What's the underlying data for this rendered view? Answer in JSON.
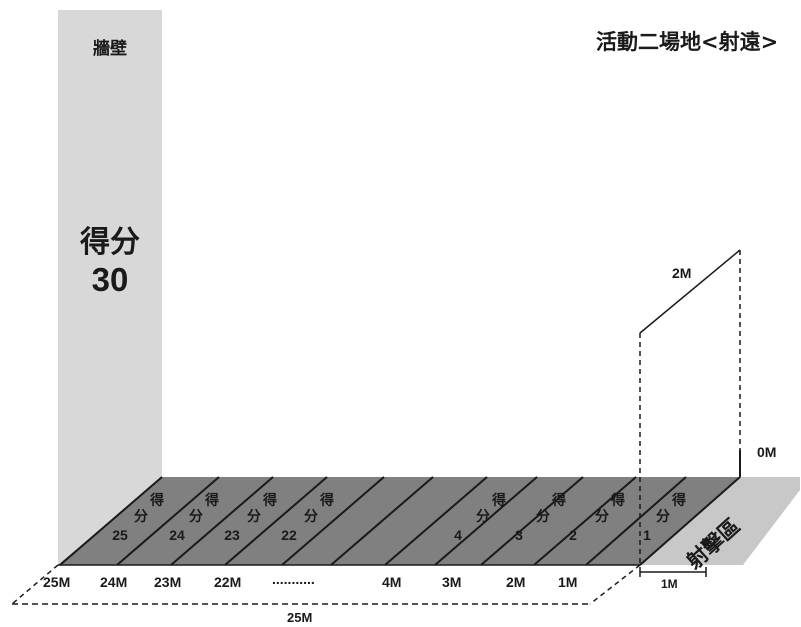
{
  "title": "活動二場地<射遠>",
  "wall": {
    "label": "牆壁",
    "score_label": "得分",
    "score_value": "30"
  },
  "shooting_zone_label": "射擊區",
  "lanes": [
    {
      "number": "1",
      "score_top": "得",
      "score_bottom": "分"
    },
    {
      "number": "2",
      "score_top": "得",
      "score_bottom": "分"
    },
    {
      "number": "3",
      "score_top": "得",
      "score_bottom": "分"
    },
    {
      "number": "4",
      "score_top": "得",
      "score_bottom": "分"
    },
    {
      "number": "22",
      "score_top": "得",
      "score_bottom": "分"
    },
    {
      "number": "23",
      "score_top": "得",
      "score_bottom": "分"
    },
    {
      "number": "24",
      "score_top": "得",
      "score_bottom": "分"
    },
    {
      "number": "25",
      "score_top": "得",
      "score_bottom": "分"
    }
  ],
  "distance_marks": [
    "25M",
    "24M",
    "23M",
    "22M",
    "4M",
    "3M",
    "2M",
    "1M"
  ],
  "ellipsis": "...........",
  "zero_mark": "0M",
  "height_dim": "2M",
  "zone_width_dim": "1M",
  "total_length_dim": "25M",
  "colors": {
    "wall": "#d8d8d8",
    "floor": "#808080",
    "shooting_zone": "#c8c8c8",
    "ink": "#1a1a1a"
  }
}
